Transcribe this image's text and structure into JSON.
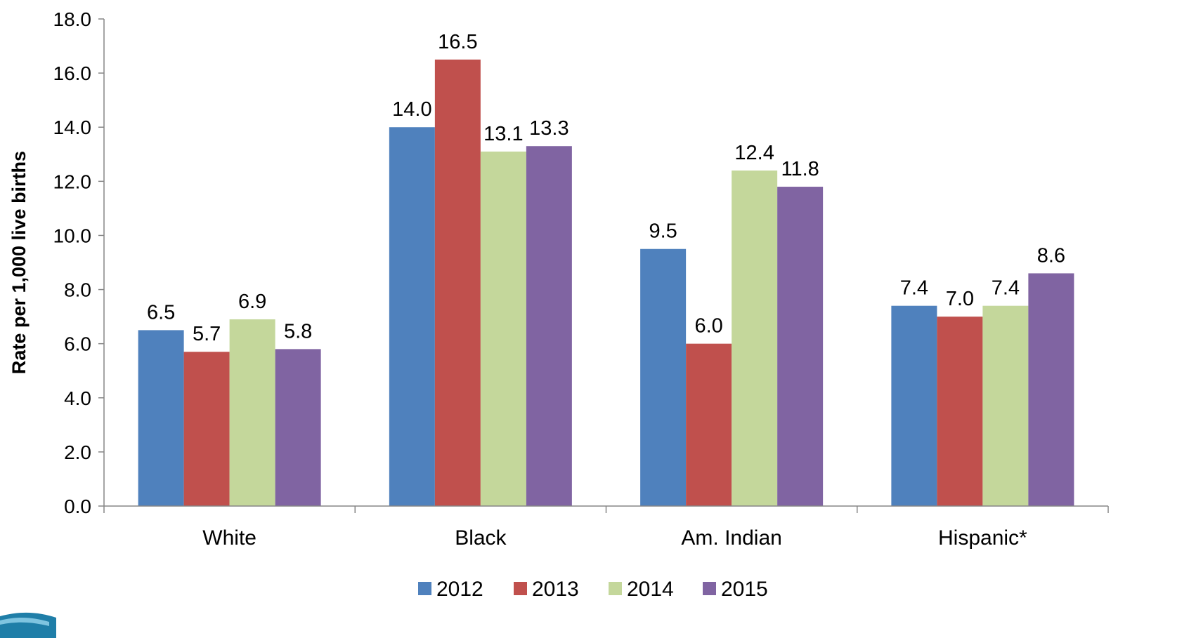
{
  "chart_data": {
    "type": "bar",
    "title": "",
    "xlabel": "",
    "ylabel": "Rate per 1,000 live births",
    "ylim": [
      0,
      18
    ],
    "ytick_step": 2,
    "ytick_labels": [
      "0.0",
      "2.0",
      "4.0",
      "6.0",
      "8.0",
      "10.0",
      "12.0",
      "14.0",
      "16.0",
      "18.0"
    ],
    "grid": false,
    "legend_position": "bottom",
    "categories": [
      "White",
      "Black",
      "Am. Indian",
      "Hispanic*"
    ],
    "series": [
      {
        "name": "2012",
        "color": "#4F81BD",
        "values": [
          6.5,
          14.0,
          9.5,
          7.4
        ]
      },
      {
        "name": "2013",
        "color": "#C0504D",
        "values": [
          5.7,
          16.5,
          6.0,
          7.0
        ]
      },
      {
        "name": "2014",
        "color": "#C4D79B",
        "values": [
          6.9,
          13.1,
          12.4,
          7.4
        ]
      },
      {
        "name": "2015",
        "color": "#8064A2",
        "values": [
          5.8,
          13.3,
          11.8,
          8.6
        ]
      }
    ],
    "data_labels": [
      [
        "6.5",
        "14.0",
        "9.5",
        "7.4"
      ],
      [
        "5.7",
        "16.5",
        "6.0",
        "7.0"
      ],
      [
        "6.9",
        "13.1",
        "12.4",
        "7.4"
      ],
      [
        "5.8",
        "13.3",
        "11.8",
        "8.6"
      ]
    ]
  }
}
